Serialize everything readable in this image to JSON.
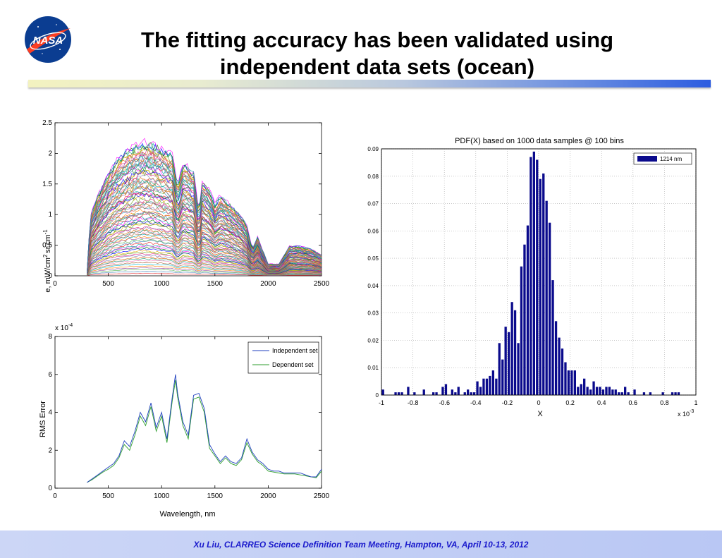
{
  "slide": {
    "title_line1": "The fitting accuracy has been validated using",
    "title_line2": "independent data sets (ocean)",
    "logo_text": "NASA",
    "footer": "Xu Liu, CLARREO Science Definition Team Meeting, Hampton, VA, April 10-13, 2012"
  },
  "colors": {
    "accent_blue": "#0b3d91",
    "bar_navy": "#0a0a8c",
    "independent_line": "#1f3fbf",
    "dependent_line": "#2e9e2e",
    "footer_text": "#1a1acc"
  },
  "chart_data": [
    {
      "type": "line",
      "title": "",
      "ylabel": "Radiance, mW/cm",
      "ylabel_sup": "2",
      "ylabel_suffix": "sr.cm",
      "ylabel_sup2": "-1",
      "xlabel": "",
      "xlim": [
        0,
        2500
      ],
      "ylim": [
        0,
        2.5
      ],
      "xticks": [
        "0",
        "500",
        "1000",
        "1500",
        "2000",
        "2500"
      ],
      "yticks": [
        "0",
        "0.5",
        "1",
        "1.5",
        "2",
        "2.5"
      ],
      "grid": false,
      "series_count": 1000,
      "envelope_upper": {
        "x": [
          300,
          330,
          400,
          500,
          600,
          700,
          800,
          900,
          1000,
          1100,
          1150,
          1200,
          1300,
          1350,
          1380,
          1450,
          1500,
          1550,
          1650,
          1750,
          1800,
          1850,
          1900,
          2000,
          2100,
          2200,
          2300,
          2400,
          2500
        ],
        "y": [
          0.05,
          1.0,
          1.35,
          1.75,
          2.0,
          2.15,
          2.25,
          2.25,
          2.15,
          2.05,
          1.5,
          1.9,
          1.75,
          1.1,
          1.6,
          1.45,
          1.2,
          1.35,
          1.2,
          1.0,
          0.85,
          0.45,
          0.65,
          0.2,
          0.2,
          0.5,
          0.5,
          0.45,
          0.35
        ]
      }
    },
    {
      "type": "line",
      "title": "",
      "ylabel": "RMS Error",
      "xlabel": "Wavelength, nm",
      "scale_label": "x 10",
      "scale_exponent": "-4",
      "xlim": [
        0,
        2500
      ],
      "ylim": [
        0,
        8
      ],
      "xticks": [
        "0",
        "500",
        "1000",
        "1500",
        "2000",
        "2500"
      ],
      "yticks": [
        "0",
        "2",
        "4",
        "6",
        "8"
      ],
      "legend": "top-right",
      "series": [
        {
          "name": "Independent set",
          "x": [
            300,
            350,
            400,
            450,
            500,
            550,
            600,
            650,
            700,
            750,
            800,
            850,
            900,
            950,
            1000,
            1050,
            1100,
            1130,
            1150,
            1200,
            1250,
            1300,
            1350,
            1400,
            1450,
            1500,
            1550,
            1600,
            1650,
            1700,
            1750,
            1800,
            1850,
            1900,
            1950,
            2000,
            2050,
            2100,
            2150,
            2200,
            2250,
            2300,
            2350,
            2400,
            2450,
            2500
          ],
          "y": [
            0.3,
            0.5,
            0.7,
            0.9,
            1.1,
            1.3,
            1.7,
            2.5,
            2.2,
            3.0,
            4.0,
            3.5,
            4.5,
            3.2,
            4.0,
            2.6,
            4.8,
            6.0,
            5.0,
            3.5,
            2.8,
            4.9,
            5.0,
            4.2,
            2.3,
            1.8,
            1.4,
            1.7,
            1.4,
            1.3,
            1.6,
            2.6,
            1.9,
            1.5,
            1.3,
            1.0,
            0.9,
            0.9,
            0.8,
            0.8,
            0.8,
            0.8,
            0.7,
            0.6,
            0.6,
            1.0
          ]
        },
        {
          "name": "Dependent set",
          "x": [
            300,
            350,
            400,
            450,
            500,
            550,
            600,
            650,
            700,
            750,
            800,
            850,
            900,
            950,
            1000,
            1050,
            1100,
            1130,
            1150,
            1200,
            1250,
            1300,
            1350,
            1400,
            1450,
            1500,
            1550,
            1600,
            1650,
            1700,
            1750,
            1800,
            1850,
            1900,
            1950,
            2000,
            2050,
            2100,
            2150,
            2200,
            2250,
            2300,
            2350,
            2400,
            2450,
            2500
          ],
          "y": [
            0.3,
            0.45,
            0.65,
            0.85,
            1.0,
            1.2,
            1.6,
            2.3,
            2.0,
            2.8,
            3.8,
            3.3,
            4.3,
            3.0,
            3.8,
            2.4,
            4.6,
            5.7,
            4.8,
            3.3,
            2.6,
            4.7,
            4.8,
            4.0,
            2.1,
            1.7,
            1.3,
            1.6,
            1.3,
            1.2,
            1.5,
            2.4,
            1.8,
            1.4,
            1.2,
            0.9,
            0.85,
            0.8,
            0.75,
            0.75,
            0.75,
            0.7,
            0.65,
            0.6,
            0.55,
            0.9
          ]
        }
      ]
    },
    {
      "type": "bar",
      "title": "PDF(X) based on 1000 data samples @ 100 bins",
      "xlabel": "X",
      "ylabel": "",
      "scale_label": "x 10",
      "scale_exponent": "-3",
      "xlim": [
        -1,
        1
      ],
      "ylim": [
        0,
        0.09
      ],
      "xticks": [
        "-1",
        "-0.8",
        "-0.6",
        "-0.4",
        "-0.2",
        "0",
        "0.2",
        "0.4",
        "0.6",
        "0.8",
        "1"
      ],
      "yticks": [
        "0",
        "0.01",
        "0.02",
        "0.03",
        "0.04",
        "0.05",
        "0.06",
        "0.07",
        "0.08",
        "0.09"
      ],
      "grid": true,
      "legend": "top-right",
      "bin_width": 0.02,
      "series": [
        {
          "name": "1214 nm",
          "x": [
            -0.99,
            -0.91,
            -0.89,
            -0.87,
            -0.83,
            -0.79,
            -0.73,
            -0.67,
            -0.65,
            -0.61,
            -0.59,
            -0.55,
            -0.53,
            -0.51,
            -0.47,
            -0.45,
            -0.43,
            -0.41,
            -0.39,
            -0.37,
            -0.35,
            -0.33,
            -0.31,
            -0.29,
            -0.27,
            -0.25,
            -0.23,
            -0.21,
            -0.19,
            -0.17,
            -0.15,
            -0.13,
            -0.11,
            -0.09,
            -0.07,
            -0.05,
            -0.03,
            -0.01,
            0.01,
            0.03,
            0.05,
            0.07,
            0.09,
            0.11,
            0.13,
            0.15,
            0.17,
            0.19,
            0.21,
            0.23,
            0.25,
            0.27,
            0.29,
            0.31,
            0.33,
            0.35,
            0.37,
            0.39,
            0.41,
            0.43,
            0.45,
            0.47,
            0.49,
            0.51,
            0.53,
            0.55,
            0.57,
            0.61,
            0.67,
            0.71,
            0.79,
            0.85,
            0.87,
            0.89
          ],
          "y": [
            0.002,
            0.001,
            0.001,
            0.001,
            0.003,
            0.001,
            0.002,
            0.001,
            0.001,
            0.003,
            0.004,
            0.002,
            0.001,
            0.003,
            0.001,
            0.002,
            0.001,
            0.001,
            0.005,
            0.003,
            0.006,
            0.006,
            0.007,
            0.009,
            0.006,
            0.019,
            0.013,
            0.025,
            0.023,
            0.034,
            0.031,
            0.019,
            0.047,
            0.055,
            0.062,
            0.087,
            0.089,
            0.086,
            0.079,
            0.081,
            0.071,
            0.063,
            0.042,
            0.027,
            0.021,
            0.017,
            0.012,
            0.009,
            0.009,
            0.009,
            0.003,
            0.004,
            0.006,
            0.003,
            0.002,
            0.005,
            0.003,
            0.003,
            0.002,
            0.003,
            0.003,
            0.002,
            0.002,
            0.001,
            0.001,
            0.003,
            0.001,
            0.002,
            0.001,
            0.001,
            0.001,
            0.001,
            0.001,
            0.001
          ]
        }
      ]
    }
  ]
}
